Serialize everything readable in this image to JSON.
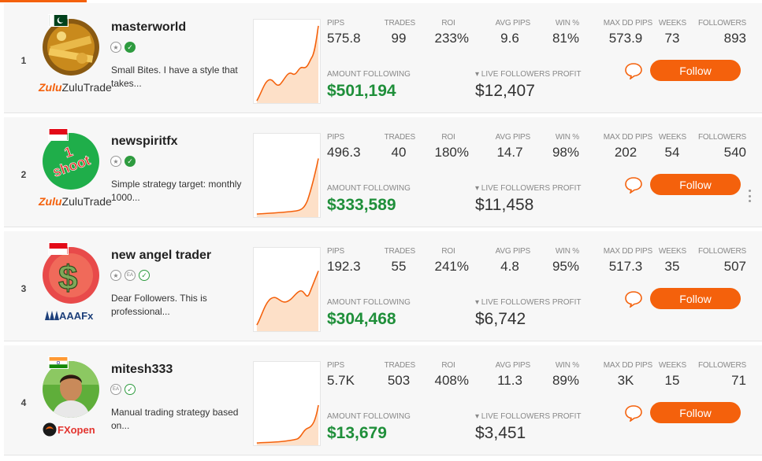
{
  "labels": {
    "pips": "PIPS",
    "trades": "TRADES",
    "roi": "ROI",
    "avg_pips": "AVG PIPS",
    "win": "WIN %",
    "max_dd": "MAX DD PIPS",
    "weeks": "WEEKS",
    "followers": "FOLLOWERS",
    "amount_following": "AMOUNT FOLLOWING",
    "live_profit": "▾ LIVE FOLLOWERS PROFIT",
    "follow": "Follow"
  },
  "colors": {
    "accent": "#f4610c",
    "green": "#1f8f3a"
  },
  "traders": [
    {
      "rank": "1",
      "name": "masterworld",
      "desc": "Small Bites. I have a style that takes...",
      "broker": "ZuluTrade",
      "pips": "575.8",
      "trades": "99",
      "roi": "233%",
      "avg_pips": "9.6",
      "win": "81%",
      "max_dd": "573.9",
      "weeks": "73",
      "followers": "893",
      "amount_following": "$501,194",
      "live_profit": "$12,407"
    },
    {
      "rank": "2",
      "name": "newspiritfx",
      "desc": "Simple strategy target: monthly 1000...",
      "broker": "ZuluTrade",
      "pips": "496.3",
      "trades": "40",
      "roi": "180%",
      "avg_pips": "14.7",
      "win": "98%",
      "max_dd": "202",
      "weeks": "54",
      "followers": "540",
      "amount_following": "$333,589",
      "live_profit": "$11,458"
    },
    {
      "rank": "3",
      "name": "new angel trader",
      "desc": "Dear Followers. This is professional...",
      "broker": "AAAFx",
      "pips": "192.3",
      "trades": "55",
      "roi": "241%",
      "avg_pips": "4.8",
      "win": "95%",
      "max_dd": "517.3",
      "weeks": "35",
      "followers": "507",
      "amount_following": "$304,468",
      "live_profit": "$6,742"
    },
    {
      "rank": "4",
      "name": "mitesh333",
      "desc": "Manual trading strategy based on...",
      "broker": "FXopen",
      "pips": "5.7K",
      "trades": "503",
      "roi": "408%",
      "avg_pips": "11.3",
      "win": "89%",
      "max_dd": "3K",
      "weeks": "15",
      "followers": "71",
      "amount_following": "$13,679",
      "live_profit": "$3,451"
    }
  ]
}
